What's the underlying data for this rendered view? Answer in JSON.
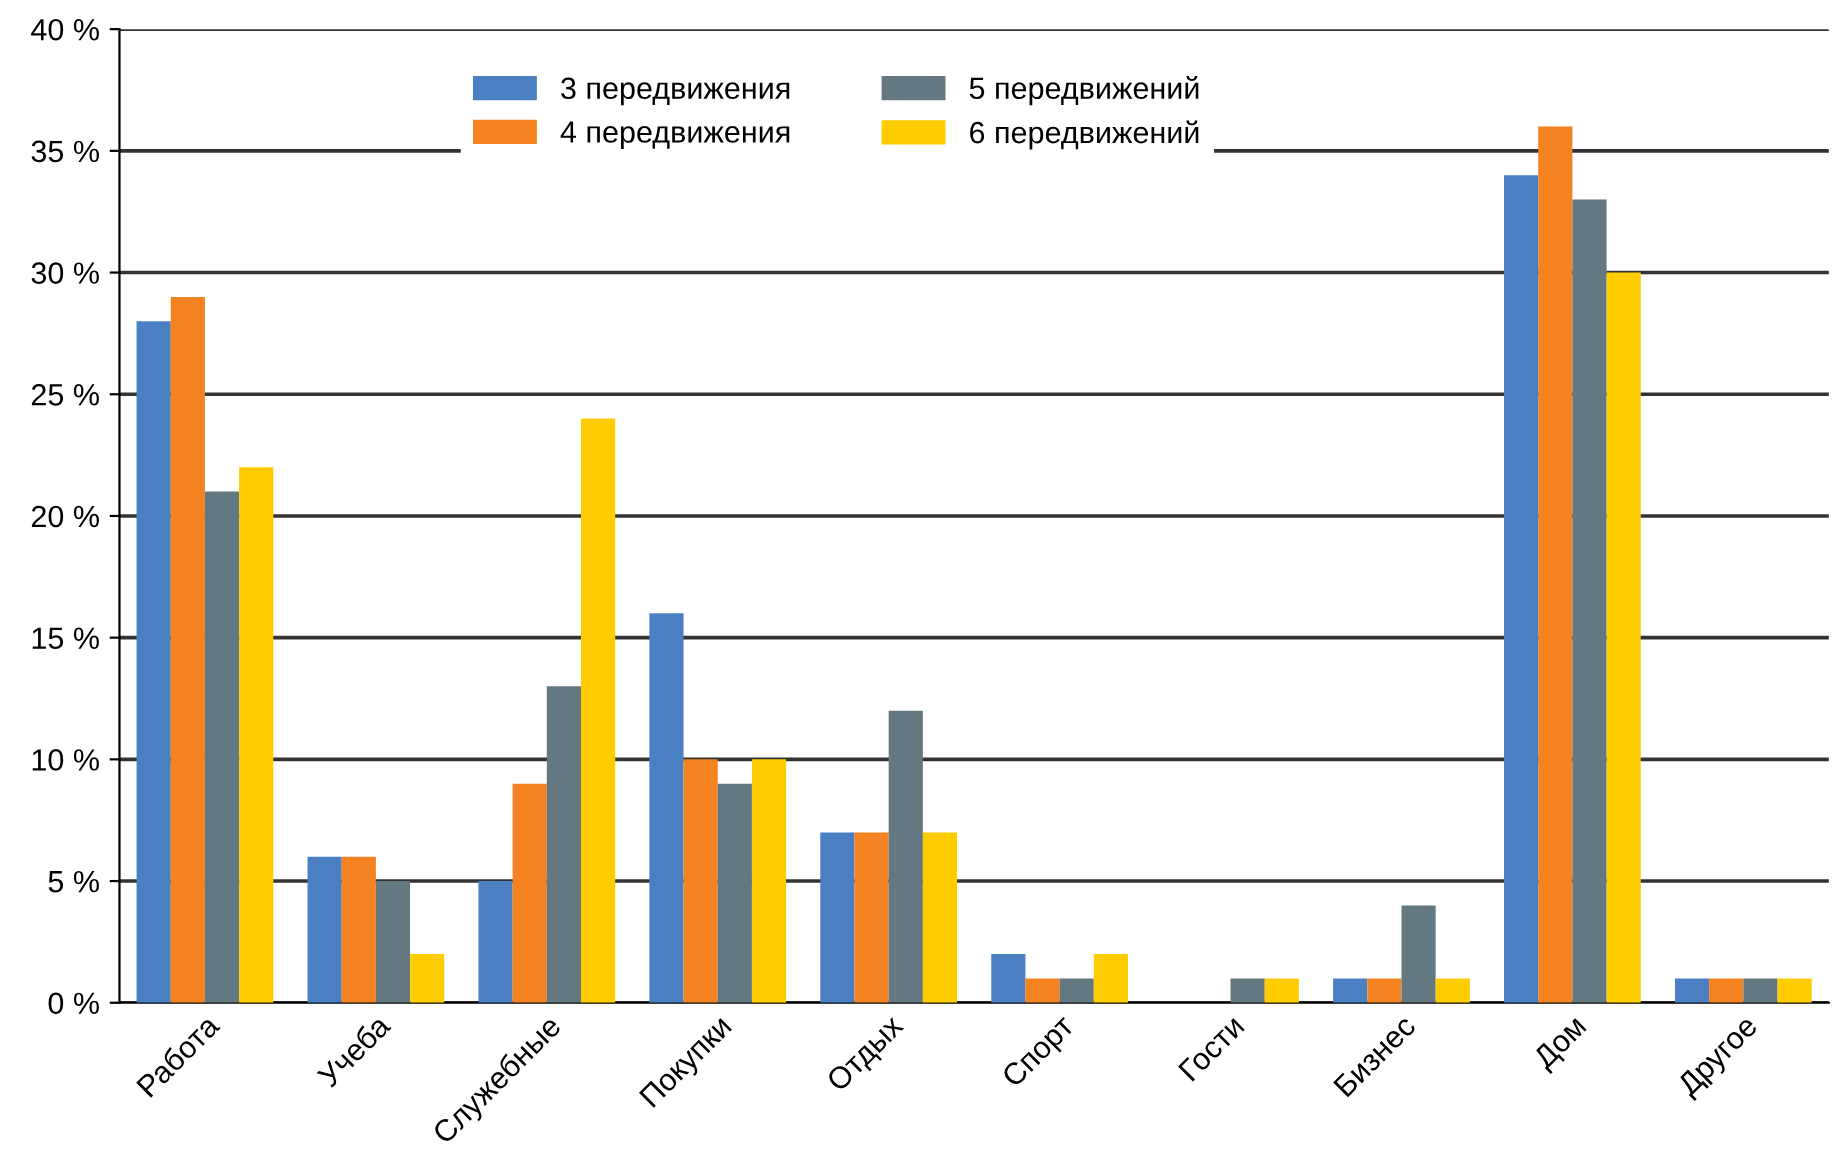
{
  "chart_data": {
    "type": "bar",
    "categories": [
      "Работа",
      "Учеба",
      "Служебные",
      "Покупки",
      "Отдых",
      "Спорт",
      "Гости",
      "Бизнес",
      "Дом",
      "Другое"
    ],
    "series": [
      {
        "name": "3 передвижения",
        "color": "#4a7fc1",
        "values": [
          28,
          6,
          5,
          16,
          7,
          2,
          0,
          1,
          34,
          1
        ]
      },
      {
        "name": "4 передвижения",
        "color": "#f58220",
        "values": [
          29,
          6,
          9,
          10,
          7,
          1,
          0,
          1,
          36,
          1
        ]
      },
      {
        "name": "5 передвижений",
        "color": "#637880",
        "values": [
          21,
          5,
          13,
          9,
          12,
          1,
          1,
          4,
          33,
          1
        ]
      },
      {
        "name": "6 передвижений",
        "color": "#ffcc00",
        "values": [
          22,
          2,
          24,
          10,
          7,
          2,
          1,
          1,
          30,
          1
        ]
      }
    ],
    "ylim": [
      0,
      40
    ],
    "yticks": [
      {
        "value": 0,
        "label": "0 %"
      },
      {
        "value": 5,
        "label": "5 %"
      },
      {
        "value": 10,
        "label": "10 %"
      },
      {
        "value": 15,
        "label": "15 %"
      },
      {
        "value": 20,
        "label": "20 %"
      },
      {
        "value": 25,
        "label": "25 %"
      },
      {
        "value": 30,
        "label": "30 %"
      },
      {
        "value": 35,
        "label": "35 %"
      },
      {
        "value": 40,
        "label": "40 %"
      }
    ],
    "grid": "y",
    "legend": "top"
  }
}
